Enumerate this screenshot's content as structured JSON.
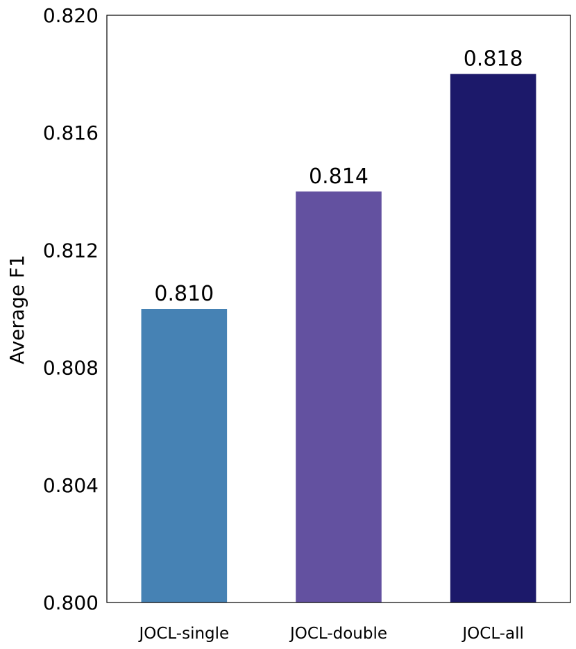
{
  "chart_data": {
    "type": "bar",
    "title": "",
    "xlabel": "",
    "ylabel": "Average F1",
    "categories": [
      "JOCL-single",
      "JOCL-double",
      "JOCL-all"
    ],
    "values": [
      0.81,
      0.814,
      0.818
    ],
    "value_labels": [
      "0.810",
      "0.814",
      "0.818"
    ],
    "colors": [
      "#4682b4",
      "#6351a0",
      "#1c196a"
    ],
    "ylim": [
      0.8,
      0.82
    ],
    "yticks": [
      0.8,
      0.804,
      0.808,
      0.812,
      0.816,
      0.82
    ],
    "ytick_labels": [
      "0.800",
      "0.804",
      "0.808",
      "0.812",
      "0.816",
      "0.820"
    ],
    "grid": false,
    "legend": "none"
  }
}
